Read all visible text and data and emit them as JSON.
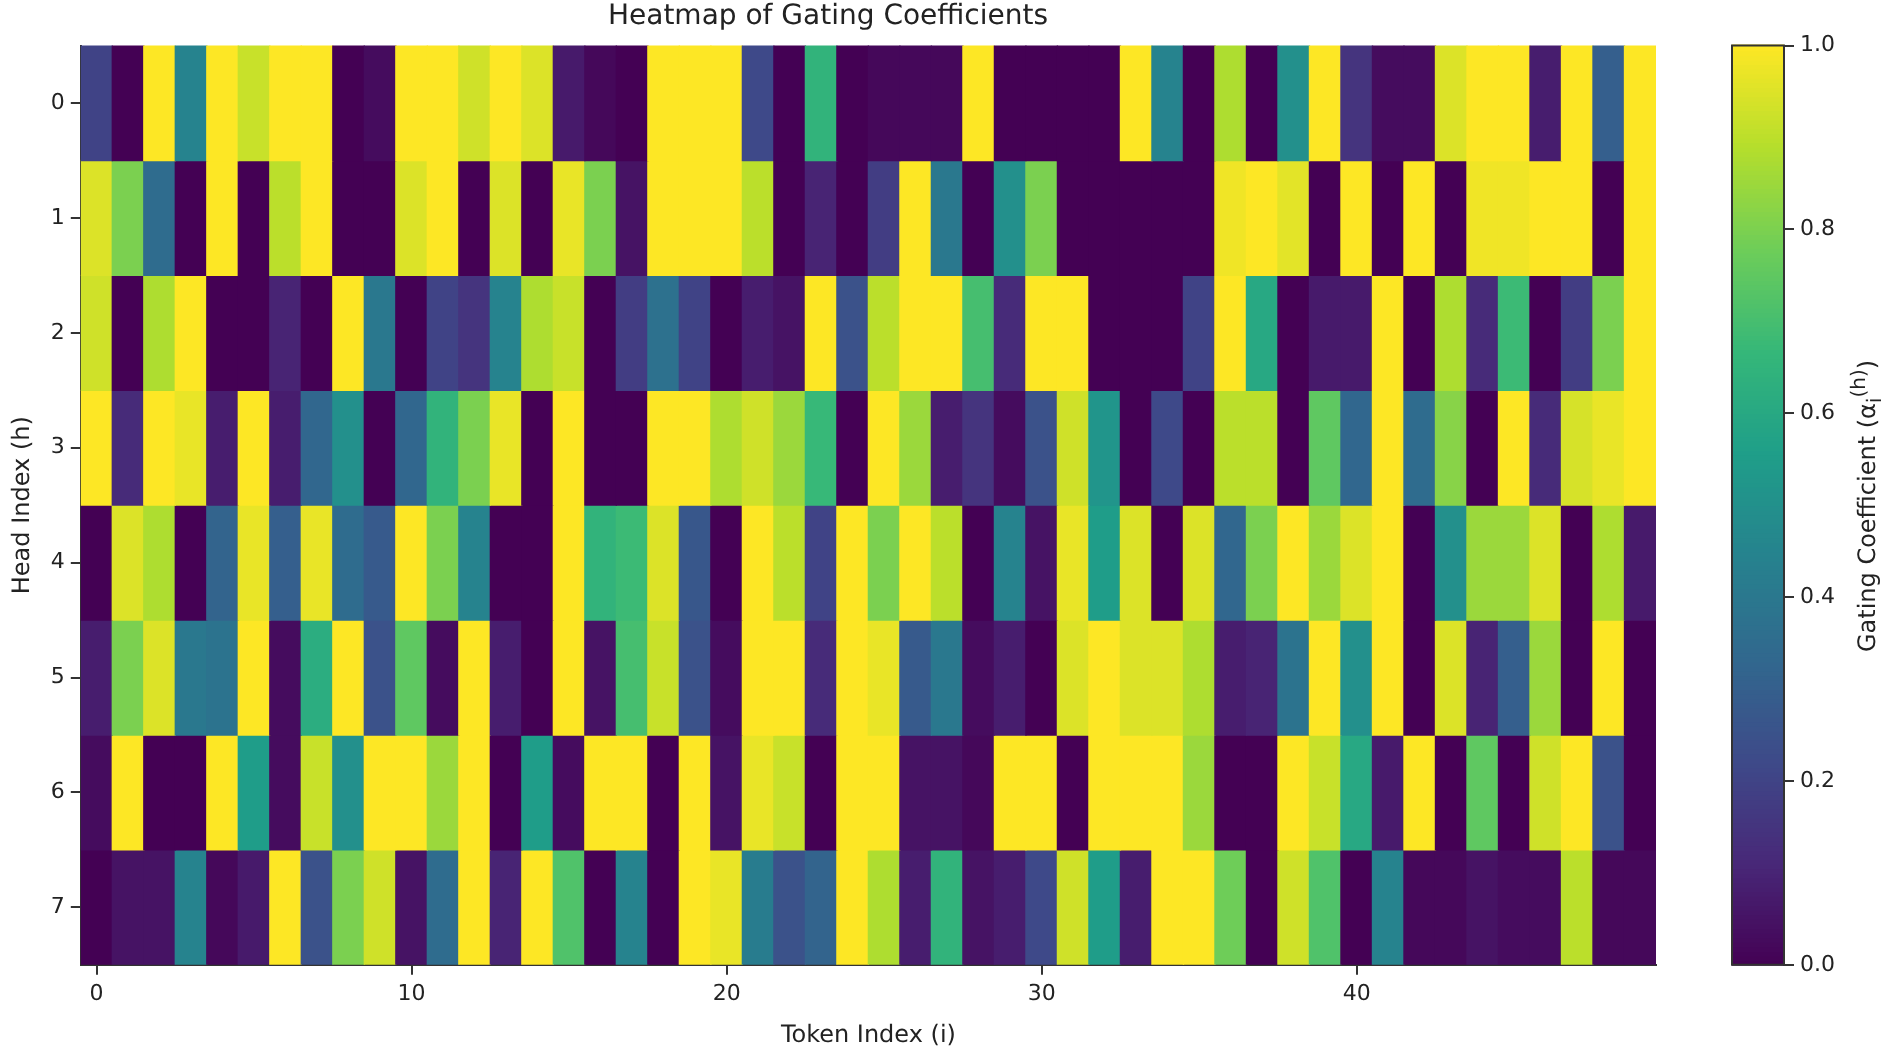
{
  "chart_data": {
    "type": "heatmap",
    "title": "Heatmap of Gating Coefficients",
    "xlabel": "Token Index (i)",
    "ylabel": "Head Index (h)",
    "clabel": "Gating Coefficient (α$_{i}$$^{(h)}$)",
    "categories": [
      "0",
      null,
      null,
      null,
      null,
      null,
      null,
      null,
      null,
      null,
      "10",
      null,
      null,
      null,
      null,
      null,
      null,
      null,
      null,
      null,
      "20",
      null,
      null,
      null,
      null,
      null,
      null,
      null,
      null,
      null,
      "30",
      null,
      null,
      null,
      null,
      null,
      null,
      null,
      null,
      null,
      "40",
      null,
      null,
      null,
      null,
      null,
      null,
      null,
      null,
      null
    ],
    "y_categories": [
      "0",
      "1",
      "2",
      "3",
      "4",
      "5",
      "6",
      "7"
    ],
    "cells": [
      [
        0.2,
        0,
        1,
        0.45,
        1,
        0.92,
        1,
        1,
        0,
        0.03,
        1,
        1,
        0.93,
        1,
        0.95,
        0.07,
        0.02,
        0,
        1,
        1,
        1,
        0.22,
        0,
        0.65,
        0,
        0.02,
        0.02,
        0.02,
        1,
        0,
        0,
        0,
        0,
        1,
        0.45,
        0,
        0.88,
        0,
        0.5,
        1,
        0.15,
        0.03,
        0.03,
        0.95,
        1,
        1,
        0.08,
        1,
        0.3,
        1
      ],
      [
        0.95,
        0.8,
        0.35,
        0,
        1,
        0,
        0.9,
        1,
        0,
        0,
        0.95,
        1,
        0,
        0.95,
        0,
        0.97,
        0.8,
        0.05,
        1,
        1,
        1,
        0.9,
        0,
        0.1,
        0,
        0.18,
        1,
        0.4,
        0,
        0.5,
        0.8,
        0,
        0,
        0,
        0,
        0,
        0.98,
        1,
        0.96,
        0,
        1,
        0,
        1,
        0,
        0.98,
        0.98,
        1,
        1,
        0,
        1
      ],
      [
        0.93,
        0,
        0.88,
        1,
        0,
        0,
        0.1,
        0,
        1,
        0.4,
        0,
        0.2,
        0.15,
        0.45,
        0.88,
        0.92,
        0,
        0.18,
        0.37,
        0.2,
        0,
        0.08,
        0.05,
        1,
        0.25,
        0.9,
        1,
        1,
        0.7,
        0.12,
        1,
        1,
        0,
        0,
        0,
        0.2,
        1,
        0.6,
        0,
        0.07,
        0.07,
        1,
        0,
        0.88,
        0.12,
        0.68,
        0,
        0.18,
        0.8,
        1
      ],
      [
        1,
        0.12,
        1,
        0.97,
        0.08,
        1,
        0.08,
        0.33,
        0.5,
        0,
        0.33,
        0.65,
        0.8,
        0.97,
        0,
        1,
        0,
        0,
        1,
        1,
        0.88,
        0.93,
        0.85,
        0.67,
        0,
        1,
        0.85,
        0.08,
        0.15,
        0.03,
        0.25,
        0.93,
        0.52,
        0,
        0.22,
        0,
        0.9,
        0.9,
        0,
        0.75,
        0.33,
        1,
        0.35,
        0.82,
        0,
        1,
        0.12,
        0.94,
        0.97,
        1
      ],
      [
        0,
        0.95,
        0.88,
        0,
        0.32,
        0.97,
        0.3,
        0.97,
        0.35,
        0.28,
        1,
        0.8,
        0.45,
        0,
        0,
        1,
        0.65,
        0.68,
        0.95,
        0.27,
        0,
        1,
        0.9,
        0.2,
        1,
        0.8,
        1,
        0.9,
        0,
        0.45,
        0.05,
        0.97,
        0.55,
        0.95,
        0,
        0.95,
        0.33,
        0.8,
        1,
        0.85,
        0.95,
        1,
        0,
        0.5,
        0.85,
        0.85,
        0.95,
        0,
        0.88,
        0.07
      ],
      [
        0.08,
        0.8,
        0.95,
        0.4,
        0.38,
        1,
        0.03,
        0.62,
        1,
        0.25,
        0.75,
        0.03,
        1,
        0.08,
        0,
        1,
        0.05,
        0.7,
        0.92,
        0.25,
        0.03,
        1,
        1,
        0.12,
        1,
        0.97,
        0.28,
        0.4,
        0.03,
        0.08,
        0,
        0.95,
        1,
        0.95,
        0.95,
        0.88,
        0.08,
        0.1,
        0.38,
        1,
        0.5,
        1,
        0,
        0.95,
        0.1,
        0.3,
        0.85,
        0,
        1,
        0
      ],
      [
        0.03,
        1,
        0,
        0,
        1,
        0.55,
        0.03,
        0.92,
        0.5,
        1,
        1,
        0.85,
        1,
        0,
        0.55,
        0.03,
        1,
        1,
        0,
        1,
        0.05,
        0.97,
        0.92,
        0,
        1,
        1,
        0.05,
        0.05,
        0.02,
        1,
        1,
        0,
        1,
        1,
        1,
        0.85,
        0,
        0,
        1,
        0.92,
        0.6,
        0.07,
        1,
        0,
        0.75,
        0,
        0.93,
        1,
        0.25,
        0
      ],
      [
        0,
        0.05,
        0.05,
        0.45,
        0.02,
        0.07,
        1,
        0.25,
        0.8,
        0.93,
        0.05,
        0.35,
        1,
        0.1,
        1,
        0.72,
        0,
        0.45,
        0,
        1,
        0.97,
        0.42,
        0.25,
        0.32,
        1,
        0.88,
        0.08,
        0.65,
        0.05,
        0.08,
        0.22,
        0.93,
        0.55,
        0.08,
        1,
        1,
        0.78,
        0,
        0.93,
        0.72,
        0,
        0.45,
        0.02,
        0.02,
        0.05,
        0.03,
        0.03,
        0.9,
        0.02,
        0.02
      ]
    ],
    "clim": [
      0,
      1
    ],
    "cticks": [
      {
        "value": 0,
        "label": "0.0"
      },
      {
        "value": 0.2,
        "label": "0.2"
      },
      {
        "value": 0.4,
        "label": "0.4"
      },
      {
        "value": 0.6,
        "label": "0.6"
      },
      {
        "value": 0.8,
        "label": "0.8"
      },
      {
        "value": 1,
        "label": "1.0"
      }
    ]
  }
}
